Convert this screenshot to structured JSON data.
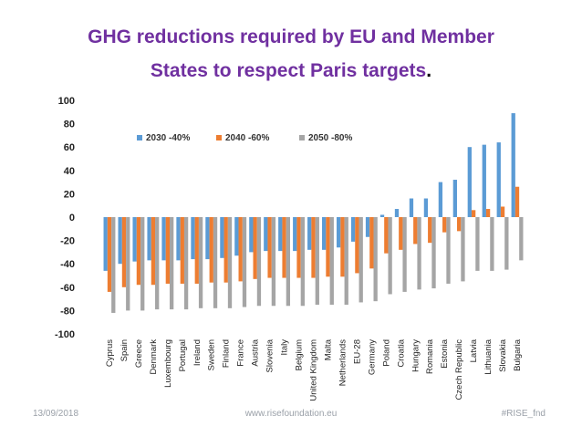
{
  "title_line1": "GHG reductions required by EU and Member",
  "title_line2": "States to respect Paris targets",
  "title_punct": ".",
  "footer": {
    "date": "13/09/2018",
    "website": "www.risefoundation.eu",
    "hashtag": "#RISE_fnd"
  },
  "chart_data": {
    "type": "bar",
    "title": "",
    "xlabel": "",
    "ylabel": "",
    "ylim": [
      -100,
      100
    ],
    "yticks": [
      100,
      80,
      60,
      40,
      20,
      0,
      -20,
      -40,
      -60,
      -80,
      -100
    ],
    "grid": false,
    "legend_position": "top-left",
    "categories": [
      "Cyprus",
      "Spain",
      "Greece",
      "Denmark",
      "Luxembourg",
      "Portugal",
      "Ireland",
      "Sweden",
      "Finland",
      "France",
      "Austria",
      "Slovenia",
      "Italy",
      "Belgium",
      "United Kingdom",
      "Malta",
      "Netherlands",
      "EU-28",
      "Germany",
      "Poland",
      "Croatia",
      "Hungary",
      "Romania",
      "Estonia",
      "Czech Republic",
      "Latvia",
      "Lithuania",
      "Slovakia",
      "Bulgaria"
    ],
    "series": [
      {
        "name": "2030 -40%",
        "color": "#5b9bd5",
        "values": [
          -46,
          -40,
          -38,
          -37,
          -37,
          -37,
          -36,
          -36,
          -35,
          -33,
          -30,
          -29,
          -29,
          -29,
          -28,
          -28,
          -26,
          -21,
          -17,
          2,
          7,
          16,
          16,
          30,
          32,
          60,
          62,
          64,
          89
        ]
      },
      {
        "name": "2040 -60%",
        "color": "#ed7d31",
        "values": [
          -64,
          -60,
          -58,
          -58,
          -57,
          -57,
          -57,
          -56,
          -56,
          -55,
          -53,
          -52,
          -52,
          -52,
          -52,
          -51,
          -51,
          -48,
          -44,
          -31,
          -28,
          -23,
          -22,
          -13,
          -12,
          6,
          7,
          9,
          26
        ]
      },
      {
        "name": "2050 -80%",
        "color": "#a5a5a5",
        "values": [
          -82,
          -80,
          -80,
          -79,
          -79,
          -79,
          -78,
          -78,
          -78,
          -77,
          -76,
          -76,
          -76,
          -76,
          -75,
          -75,
          -75,
          -73,
          -72,
          -66,
          -64,
          -62,
          -61,
          -57,
          -55,
          -46,
          -46,
          -45,
          -37
        ]
      }
    ]
  }
}
